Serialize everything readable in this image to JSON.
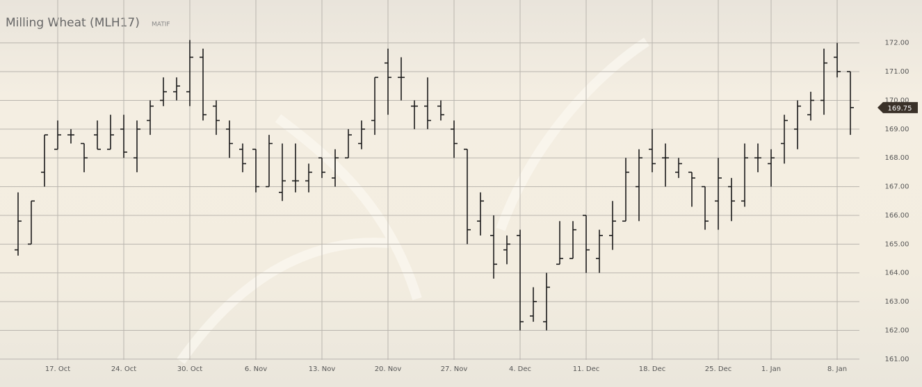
{
  "chart_data": {
    "type": "ohlc",
    "title": "Milling Wheat (MLH17)",
    "subtitle": "MATIF",
    "categories": [
      null,
      null,
      null,
      "17. Oct",
      null,
      null,
      null,
      null,
      "24. Oct",
      null,
      null,
      null,
      null,
      "30. Oct",
      null,
      null,
      null,
      null,
      "6. Nov",
      null,
      null,
      null,
      null,
      "13. Nov",
      null,
      null,
      null,
      null,
      "20. Nov",
      null,
      null,
      null,
      null,
      "27. Nov",
      null,
      null,
      null,
      null,
      "4. Dec",
      null,
      null,
      null,
      null,
      "11. Dec",
      null,
      null,
      null,
      null,
      "18. Dec",
      null,
      null,
      null,
      null,
      "25. Dec",
      null,
      null,
      null,
      "1. Jan",
      null,
      null,
      null,
      null,
      "8. Jan",
      null
    ],
    "open": [
      164.8,
      165.0,
      167.5,
      168.3,
      168.8,
      168.5,
      168.8,
      168.3,
      169.0,
      168.0,
      169.3,
      170.0,
      170.3,
      170.3,
      171.5,
      169.8,
      169.0,
      168.3,
      168.3,
      167.0,
      166.8,
      167.2,
      167.2,
      168.0,
      167.3,
      168.0,
      168.5,
      169.3,
      171.3,
      170.8,
      169.8,
      169.8,
      169.8,
      169.0,
      168.3,
      165.8,
      165.3,
      164.8,
      165.3,
      162.5,
      162.3,
      164.3,
      164.5,
      166.0,
      164.5,
      165.3,
      165.8,
      167.0,
      168.3,
      168.0,
      167.5,
      167.5,
      167.0,
      166.5,
      167.0,
      166.5,
      168.0,
      167.8,
      168.5,
      169.0,
      169.5,
      170.0,
      171.5,
      171.0
    ],
    "high": [
      166.8,
      166.5,
      168.8,
      169.3,
      169.0,
      168.5,
      169.3,
      169.5,
      169.5,
      169.3,
      170.0,
      170.8,
      170.8,
      172.1,
      171.8,
      170.0,
      169.3,
      168.5,
      168.3,
      168.8,
      168.5,
      168.5,
      167.8,
      168.0,
      168.3,
      169.0,
      169.3,
      170.8,
      171.8,
      171.5,
      170.0,
      170.8,
      170.0,
      169.3,
      168.3,
      166.8,
      166.0,
      165.3,
      165.5,
      163.5,
      164.0,
      165.8,
      165.8,
      166.0,
      165.5,
      166.5,
      168.0,
      168.3,
      169.0,
      168.5,
      168.0,
      167.5,
      167.0,
      168.0,
      167.3,
      168.5,
      168.5,
      168.3,
      169.5,
      170.0,
      170.3,
      171.8,
      172.0,
      171.0
    ],
    "low": [
      164.6,
      165.0,
      167.0,
      168.3,
      168.5,
      167.5,
      168.3,
      168.3,
      168.0,
      167.5,
      168.8,
      169.8,
      170.0,
      169.8,
      169.3,
      168.8,
      168.0,
      167.5,
      166.8,
      167.0,
      166.5,
      166.8,
      166.8,
      167.3,
      167.0,
      168.0,
      168.3,
      168.8,
      169.5,
      170.0,
      169.0,
      169.0,
      169.3,
      168.0,
      165.0,
      165.3,
      163.8,
      164.3,
      162.0,
      162.3,
      162.0,
      164.3,
      164.5,
      164.0,
      164.0,
      164.8,
      165.8,
      165.8,
      167.5,
      167.0,
      167.3,
      166.3,
      165.5,
      165.5,
      165.8,
      166.3,
      167.5,
      167.0,
      167.8,
      168.3,
      169.3,
      169.5,
      170.8,
      168.8
    ],
    "close": [
      165.8,
      166.5,
      168.8,
      168.8,
      168.8,
      168.0,
      168.3,
      168.8,
      168.2,
      169.0,
      169.8,
      170.3,
      170.5,
      171.5,
      169.5,
      169.3,
      168.5,
      167.8,
      167.0,
      168.5,
      167.2,
      167.2,
      167.5,
      167.5,
      168.0,
      168.8,
      169.0,
      170.8,
      170.8,
      170.8,
      169.8,
      169.3,
      169.5,
      168.5,
      165.5,
      166.5,
      164.3,
      165.0,
      162.3,
      163.0,
      163.5,
      164.5,
      165.5,
      164.8,
      165.3,
      165.8,
      167.5,
      168.0,
      167.8,
      168.0,
      167.8,
      167.3,
      165.8,
      167.3,
      166.5,
      168.0,
      168.0,
      168.0,
      169.3,
      169.8,
      170.0,
      171.3,
      171.0,
      169.75
    ],
    "last_price": 169.75,
    "color": "#1a1a1a",
    "ylim": [
      160.45,
      173.25
    ],
    "yticks": [
      {
        "value": 161,
        "label": "161.00"
      },
      {
        "value": 162,
        "label": "162.00"
      },
      {
        "value": 163,
        "label": "163.00"
      },
      {
        "value": 164,
        "label": "164.00"
      },
      {
        "value": 165,
        "label": "165.00"
      },
      {
        "value": 166,
        "label": "166.00"
      },
      {
        "value": 167,
        "label": "167.00"
      },
      {
        "value": 168,
        "label": "168.00"
      },
      {
        "value": 169,
        "label": "169.00"
      },
      {
        "value": 170,
        "label": "170.00"
      },
      {
        "value": 171,
        "label": "171.00"
      },
      {
        "value": 172,
        "label": "172.00"
      }
    ],
    "grid": true
  }
}
